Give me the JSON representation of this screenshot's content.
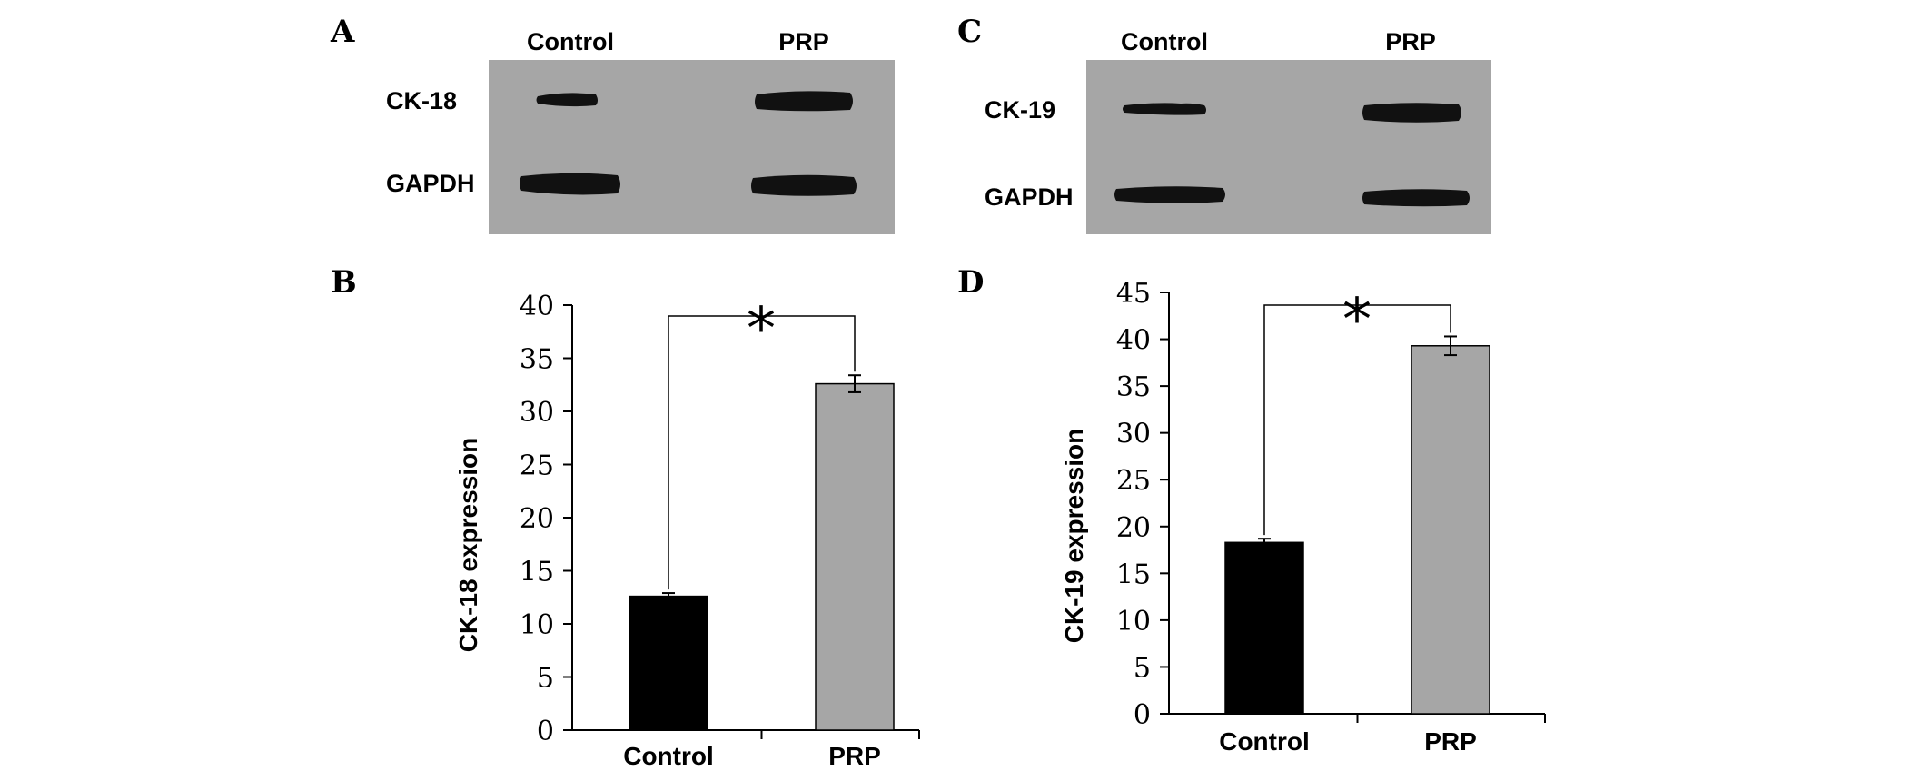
{
  "panels": {
    "blotA": {
      "letter": "A",
      "lane_labels": [
        "Control",
        "PRP"
      ],
      "row_labels": [
        "CK-18",
        "GAPDH"
      ]
    },
    "blotC": {
      "letter": "C",
      "lane_labels": [
        "Control",
        "PRP"
      ],
      "row_labels": [
        "CK-19",
        "GAPDH"
      ]
    },
    "chartB": {
      "letter": "B"
    },
    "chartD": {
      "letter": "D"
    }
  },
  "colors": {
    "blot_bg": "#a6a6a6",
    "band": "#111111",
    "control_bar": "#000000",
    "prp_bar": "#a6a6a6"
  },
  "chart_data": [
    {
      "type": "bar",
      "panel": "B",
      "categories": [
        "Control",
        "PRP"
      ],
      "values": [
        12.6,
        32.6
      ],
      "errors": [
        0.3,
        0.8
      ],
      "ylabel": "CK-18 expression",
      "ylim": [
        0,
        40
      ],
      "yticks": [
        0,
        5,
        10,
        15,
        20,
        25,
        30,
        35,
        40
      ],
      "significance": "*",
      "grid": false,
      "legend": "none"
    },
    {
      "type": "bar",
      "panel": "D",
      "categories": [
        "Control",
        "PRP"
      ],
      "values": [
        18.3,
        39.3
      ],
      "errors": [
        0.4,
        1.0
      ],
      "ylabel": "CK-19 expression",
      "ylim": [
        0,
        45
      ],
      "yticks": [
        0,
        5,
        10,
        15,
        20,
        25,
        30,
        35,
        40,
        45
      ],
      "significance": "*",
      "grid": false,
      "legend": "none"
    }
  ]
}
